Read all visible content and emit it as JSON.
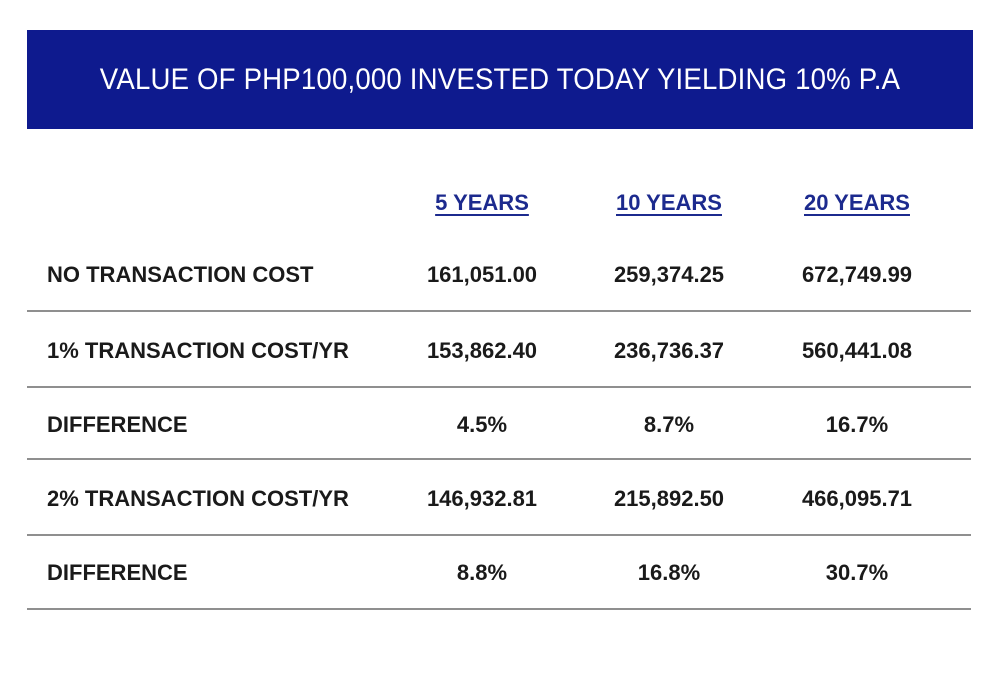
{
  "chart_data": {
    "type": "table",
    "title": "VALUE OF PHP100,000 INVESTED TODAY YIELDING 10% P.A",
    "columns": [
      "5 YEARS",
      "10 YEARS",
      "20 YEARS"
    ],
    "rows": [
      {
        "label": "NO TRANSACTION COST",
        "values": [
          "161,051.00",
          "259,374.25",
          "672,749.99"
        ]
      },
      {
        "label": "1% TRANSACTION COST/YR",
        "values": [
          "153,862.40",
          "236,736.37",
          "560,441.08"
        ]
      },
      {
        "label": "DIFFERENCE",
        "values": [
          "4.5%",
          "8.7%",
          "16.7%"
        ]
      },
      {
        "label": "2% TRANSACTION COST/YR",
        "values": [
          "146,932.81",
          "215,892.50",
          "466,095.71"
        ]
      },
      {
        "label": "DIFFERENCE",
        "values": [
          "8.8%",
          "16.8%",
          "30.7%"
        ]
      }
    ]
  },
  "colors": {
    "banner_bg": "#0e1a8e",
    "banner_text": "#ffffff",
    "column_header": "#1c2a8e",
    "divider": "#8f8f8f"
  }
}
